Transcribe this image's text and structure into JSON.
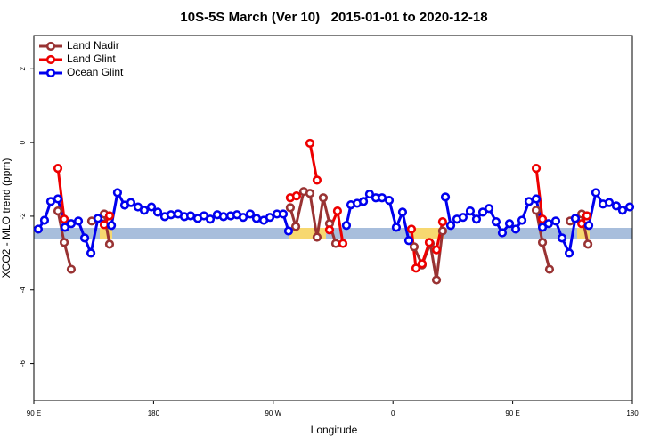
{
  "chart_data": {
    "type": "line",
    "title": "10S-5S March (Ver 10)   2015-01-01 to 2020-12-18",
    "x_label": "Longitude",
    "y_label": "XCO2 - MLO trend (ppm)",
    "xlim": [
      90,
      540
    ],
    "xticks": [
      {
        "value": 90,
        "label": "90 E"
      },
      180,
      {
        "value": 270,
        "label": "90 W"
      },
      {
        "value": 360,
        "label": "0"
      },
      {
        "value": 450,
        "label": "90 E"
      },
      {
        "value": 540,
        "label": "180"
      }
    ],
    "ylim": [
      -7,
      2.9
    ],
    "yticks": [
      -6,
      -4,
      -2,
      0,
      2
    ],
    "legend": "top-left",
    "series": [
      {
        "name": "Land Nadir",
        "color": "#993333",
        "x": [
          108.1,
          112.8,
          118.1,
          null,
          133.5,
          142.9,
          146.9,
          null,
          282.8,
          286.9,
          292.9,
          297.6,
          302.9,
          307.6,
          312.3,
          317.0,
          null,
          375.9,
          381.9,
          388.0,
          392.7,
          397.3,
          null,
          467.7,
          472.4,
          477.7,
          null,
          493.2,
          501.9,
          506.6
        ],
        "values": [
          -1.86,
          -2.71,
          -3.44,
          null,
          -2.13,
          -1.94,
          -2.76,
          null,
          -1.77,
          -2.28,
          -1.33,
          -1.38,
          -2.57,
          -1.5,
          -2.2,
          -2.74,
          null,
          -2.83,
          -3.32,
          -2.74,
          -3.73,
          -2.4,
          null,
          -1.84,
          -2.71,
          -3.44,
          null,
          -2.13,
          -1.94,
          -2.76
        ]
      },
      {
        "name": "Land Glint",
        "color": "#ee0000",
        "x": [
          108.1,
          112.8,
          null,
          142.9,
          146.9,
          null,
          282.8,
          287.5,
          null,
          297.6,
          302.9,
          null,
          312.3,
          318.3,
          322.4,
          null,
          373.9,
          377.3,
          381.9,
          387.3,
          392.7,
          397.3,
          null,
          467.7,
          472.4,
          null,
          501.9,
          505.8
        ],
        "values": [
          -0.7,
          -2.08,
          null,
          -2.23,
          -1.99,
          null,
          -1.5,
          -1.45,
          null,
          -0.02,
          -1.02,
          null,
          -2.37,
          -1.86,
          -2.74,
          null,
          -2.35,
          -3.41,
          -3.29,
          -2.71,
          -2.91,
          -2.15,
          null,
          -0.7,
          -2.08,
          null,
          -2.2,
          -1.99
        ]
      },
      {
        "name": "Ocean Glint",
        "color": "#0000ee",
        "x": [
          93.3,
          98.0,
          102.7,
          108.1,
          113.4,
          118.1,
          123.5,
          128.2,
          132.9,
          138.2,
          148.3,
          152.9,
          158.3,
          163.0,
          168.3,
          173.0,
          178.4,
          183.1,
          188.4,
          193.1,
          198.5,
          203.2,
          207.9,
          213.2,
          217.9,
          222.6,
          227.9,
          232.6,
          238.0,
          242.7,
          247.4,
          252.7,
          257.4,
          262.8,
          267.5,
          272.8,
          277.5,
          281.5,
          null,
          325.0,
          328.4,
          333.1,
          337.8,
          342.4,
          347.1,
          351.8,
          357.2,
          362.5,
          367.2,
          371.9,
          null,
          399.4,
          403.4,
          408.1,
          412.7,
          418.1,
          422.8,
          427.5,
          432.2,
          437.5,
          442.2,
          447.6,
          452.3,
          457.0,
          462.3,
          467.7,
          472.4,
          477.0,
          482.4,
          487.1,
          492.5,
          497.1,
          507.2,
          512.5,
          517.9,
          522.6,
          527.9,
          532.6,
          538.0
        ],
        "values": [
          -2.35,
          -2.11,
          -1.6,
          -1.53,
          -2.3,
          -2.2,
          -2.13,
          -2.59,
          -3.0,
          -2.06,
          -2.25,
          -1.36,
          -1.7,
          -1.63,
          -1.75,
          -1.84,
          -1.75,
          -1.89,
          -2.01,
          -1.96,
          -1.94,
          -2.01,
          -1.99,
          -2.06,
          -1.99,
          -2.08,
          -1.96,
          -2.01,
          -1.99,
          -1.96,
          -2.03,
          -1.94,
          -2.06,
          -2.11,
          -2.03,
          -1.94,
          -1.94,
          -2.4,
          null,
          -2.25,
          -1.69,
          -1.65,
          -1.6,
          -1.4,
          -1.5,
          -1.5,
          -1.57,
          -2.3,
          -1.89,
          -2.66,
          null,
          -1.48,
          -2.25,
          -2.08,
          -2.03,
          -1.86,
          -2.08,
          -1.89,
          -1.79,
          -2.15,
          -2.45,
          -2.2,
          -2.35,
          -2.11,
          -1.6,
          -1.53,
          -2.3,
          -2.2,
          -2.13,
          -2.59,
          -3.0,
          -2.06,
          -2.25,
          -1.36,
          -1.67,
          -1.63,
          -1.72,
          -1.84,
          -1.75
        ]
      }
    ]
  }
}
